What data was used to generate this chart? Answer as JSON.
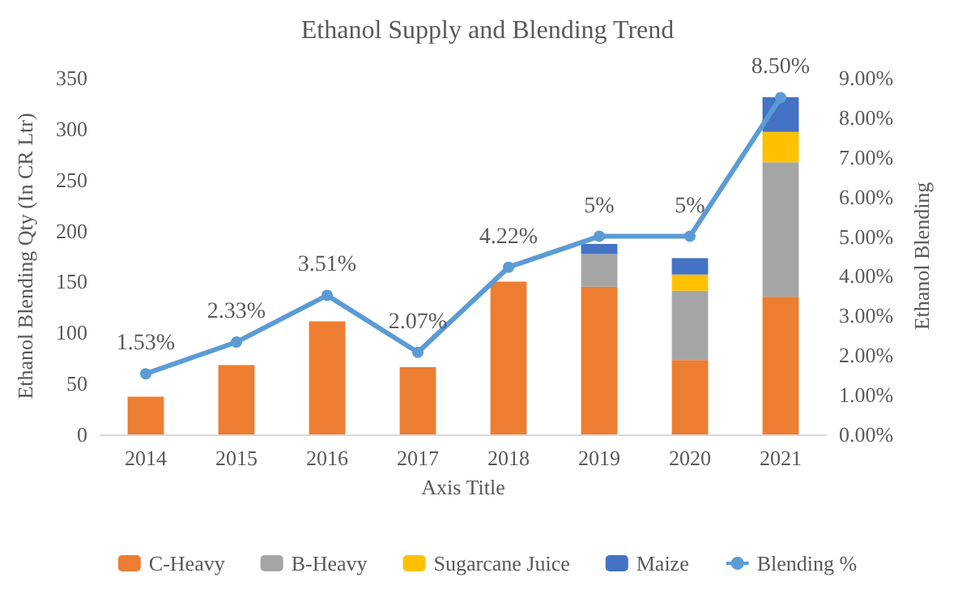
{
  "chart_data": {
    "type": "bar",
    "stacked": true,
    "title": "Ethanol Supply and Blending Trend",
    "xlabel": "Axis Title",
    "ylabel": "Ethanol Blending Qty (In CR Ltr)",
    "y2label": "Ethanol Blending",
    "categories": [
      "2014",
      "2015",
      "2016",
      "2017",
      "2018",
      "2019",
      "2020",
      "2021"
    ],
    "series": [
      {
        "name": "C-Heavy",
        "color": "#ed7d31",
        "values": [
          37,
          68,
          111,
          66,
          150,
          145,
          73,
          135
        ]
      },
      {
        "name": "B-Heavy",
        "color": "#a5a5a5",
        "values": [
          0,
          0,
          0,
          0,
          0,
          32,
          68,
          132
        ]
      },
      {
        "name": "Sugarcane Juice",
        "color": "#ffc000",
        "values": [
          0,
          0,
          0,
          0,
          0,
          0,
          16,
          30
        ]
      },
      {
        "name": "Maize",
        "color": "#4472c4",
        "values": [
          0,
          0,
          0,
          0,
          0,
          10,
          16,
          34
        ]
      },
      {
        "name": "Blending %",
        "type": "line",
        "axis": "y2",
        "color": "#5b9bd5",
        "marker": "circle",
        "values": [
          1.53,
          2.33,
          3.51,
          2.07,
          4.22,
          5,
          5,
          8.5
        ],
        "value_labels": [
          "1.53%",
          "2.33%",
          "3.51%",
          "2.07%",
          "4.22%",
          "5%",
          "5%",
          "8.50%"
        ]
      }
    ],
    "ylim": [
      0,
      350
    ],
    "yticks": [
      0,
      50,
      100,
      150,
      200,
      250,
      300,
      350
    ],
    "y2lim": [
      0,
      9
    ],
    "y2ticks": [
      {
        "value": 0,
        "label": "0.00%"
      },
      {
        "value": 1,
        "label": "1.00%"
      },
      {
        "value": 2,
        "label": "2.00%"
      },
      {
        "value": 3,
        "label": "3.00%"
      },
      {
        "value": 4,
        "label": "4.00%"
      },
      {
        "value": 5,
        "label": "5.00%"
      },
      {
        "value": 6,
        "label": "6.00%"
      },
      {
        "value": 7,
        "label": "7.00%"
      },
      {
        "value": 8,
        "label": "8.00%"
      },
      {
        "value": 9,
        "label": "9.00%"
      }
    ],
    "grid": false,
    "legend": "bottom"
  }
}
